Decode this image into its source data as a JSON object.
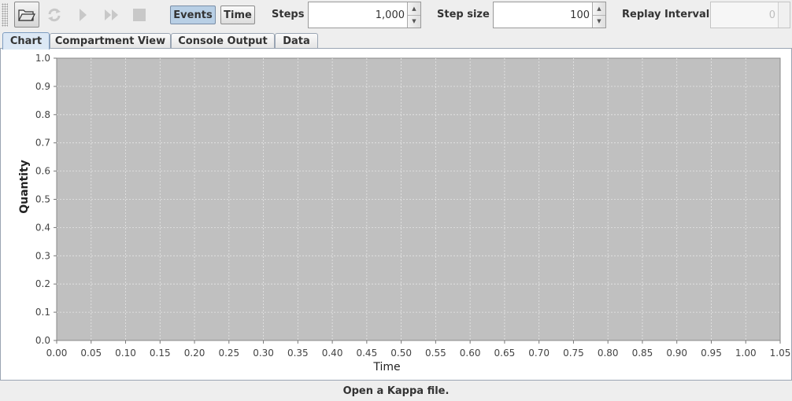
{
  "toolbar": {
    "buttons": [
      {
        "name": "open-file-button",
        "icon": "folder-open-icon",
        "enabled": true
      },
      {
        "name": "reload-button",
        "icon": "reload-icon",
        "enabled": false
      },
      {
        "name": "play-button",
        "icon": "play-icon",
        "enabled": false
      },
      {
        "name": "fast-forward-button",
        "icon": "fast-forward-icon",
        "enabled": false
      },
      {
        "name": "stop-button",
        "icon": "stop-icon",
        "enabled": false
      }
    ],
    "mode_events_label": "Events",
    "mode_time_label": "Time",
    "selected_mode": "Events",
    "steps_label": "Steps",
    "steps_value": "1,000",
    "step_size_label": "Step size",
    "step_size_value": "100",
    "replay_interval_label": "Replay Interval",
    "replay_interval_value": "0"
  },
  "tabs": [
    {
      "label": "Chart",
      "selected": true
    },
    {
      "label": "Compartment View",
      "selected": false
    },
    {
      "label": "Console Output",
      "selected": false
    },
    {
      "label": "Data",
      "selected": false
    }
  ],
  "chart_data": {
    "type": "line",
    "series": [],
    "xlabel": "Time",
    "ylabel": "Quantity",
    "xlim": [
      0,
      1.05
    ],
    "ylim": [
      0,
      1.0
    ],
    "x_ticks": [
      "0.00",
      "0.05",
      "0.10",
      "0.15",
      "0.20",
      "0.25",
      "0.30",
      "0.35",
      "0.40",
      "0.45",
      "0.50",
      "0.55",
      "0.60",
      "0.65",
      "0.70",
      "0.75",
      "0.80",
      "0.85",
      "0.90",
      "0.95",
      "1.00",
      "1.05"
    ],
    "y_ticks": [
      "0.0",
      "0.1",
      "0.2",
      "0.3",
      "0.4",
      "0.5",
      "0.6",
      "0.7",
      "0.8",
      "0.9",
      "1.0"
    ],
    "grid": true,
    "plot_background": "#c0c0c0",
    "grid_color": "#e6e6e6"
  },
  "status": "Open a Kappa file."
}
